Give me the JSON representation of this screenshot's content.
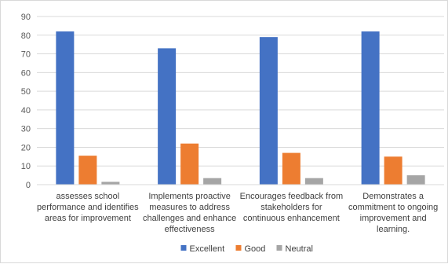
{
  "chart_data": {
    "type": "bar",
    "categories": [
      [
        "assesses school",
        "performance and identifies",
        "areas for improvement"
      ],
      [
        "Implements proactive",
        "measures to address",
        "challenges and enhance",
        "effectiveness"
      ],
      [
        "Encourages feedback from",
        "stakeholders for",
        "continuous enhancement"
      ],
      [
        "Demonstrates a",
        "commitment to ongoing",
        "improvement and",
        "learning."
      ]
    ],
    "series": [
      {
        "name": "Excellent",
        "color": "#4472c4",
        "values": [
          82,
          73,
          79,
          82
        ]
      },
      {
        "name": "Good",
        "color": "#ed7d31",
        "values": [
          15.5,
          22,
          17,
          15
        ]
      },
      {
        "name": "Neutral",
        "color": "#a5a5a5",
        "values": [
          1.5,
          3.5,
          3.5,
          5
        ]
      }
    ],
    "ylim": [
      0,
      90
    ],
    "yticks": [
      0,
      10,
      20,
      30,
      40,
      50,
      60,
      70,
      80,
      90
    ],
    "grid": true,
    "legend": "bottom",
    "title": "",
    "xlabel": "",
    "ylabel": ""
  }
}
